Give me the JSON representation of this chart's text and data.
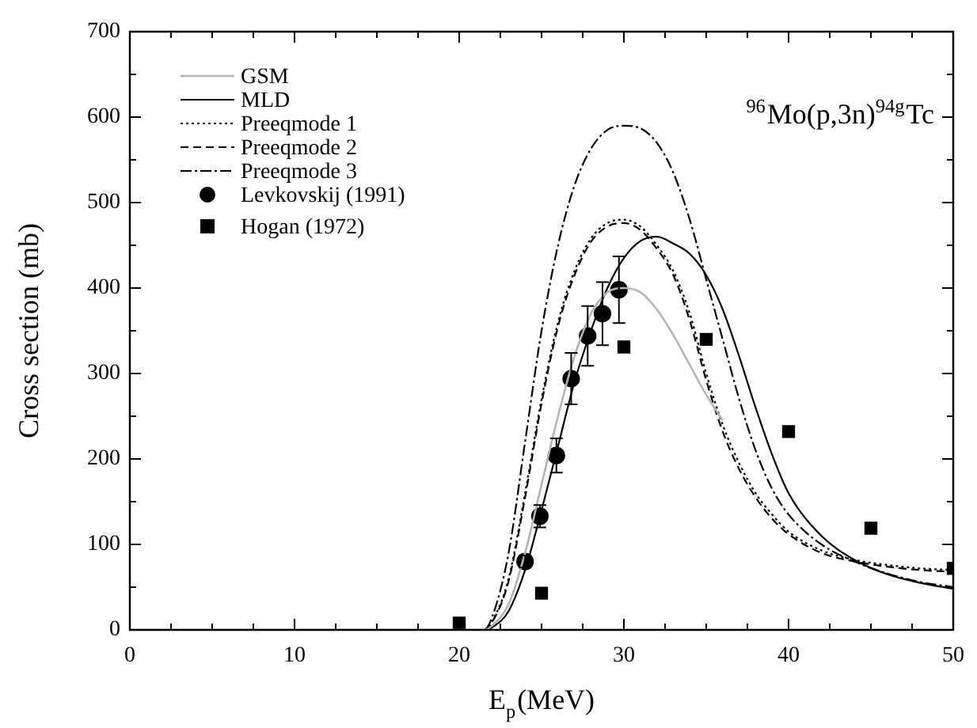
{
  "chart_data": {
    "type": "line",
    "xlabel": "E$_{p}$(MeV)",
    "ylabel": "Cross section (mb)",
    "annotations": [
      "$^{96}$Mo(p,3n)$^{94g}$Tc"
    ],
    "xlim": [
      0,
      50
    ],
    "xticks": [
      0,
      10,
      20,
      30,
      40,
      50
    ],
    "ylim": [
      0,
      700
    ],
    "yticks": [
      0,
      100,
      200,
      300,
      400,
      500,
      600,
      700
    ],
    "grid": false,
    "legend": "top left",
    "series": [
      {
        "name": "GSM",
        "color": "#b4b4b4",
        "line_style": "solid",
        "marker": "none",
        "x": [
          0,
          21.5,
          22,
          23,
          24,
          25,
          26,
          27,
          28,
          29,
          30,
          31,
          32,
          33,
          34,
          35,
          36
        ],
        "values": [
          0,
          0,
          5,
          30,
          90,
          170,
          250,
          320,
          370,
          395,
          400,
          395,
          375,
          345,
          310,
          275,
          245
        ]
      },
      {
        "name": "MLD",
        "color": "#000000",
        "line_style": "solid",
        "marker": "none",
        "x": [
          0,
          21.5,
          22,
          23,
          24,
          25,
          26,
          27,
          28,
          29,
          30,
          31,
          32,
          33,
          34,
          35,
          36,
          37,
          38,
          39,
          40,
          42,
          44,
          46,
          48,
          50
        ],
        "values": [
          0,
          0,
          3,
          22,
          70,
          140,
          215,
          290,
          350,
          400,
          435,
          455,
          460,
          452,
          440,
          415,
          375,
          320,
          260,
          205,
          160,
          110,
          82,
          65,
          55,
          48
        ]
      },
      {
        "name": "Preeqmode 1",
        "color": "#000000",
        "line_style": "dotted",
        "marker": "none",
        "x": [
          0,
          21.5,
          22,
          23,
          24,
          25,
          26,
          27,
          28,
          29,
          30,
          31,
          32,
          33,
          34,
          35,
          36,
          37,
          38,
          39,
          40,
          42,
          44,
          46,
          48,
          50
        ],
        "values": [
          0,
          0,
          10,
          60,
          160,
          270,
          360,
          420,
          458,
          476,
          480,
          472,
          450,
          420,
          370,
          300,
          240,
          195,
          160,
          135,
          115,
          93,
          82,
          76,
          72,
          70
        ]
      },
      {
        "name": "Preeqmode 2",
        "color": "#000000",
        "line_style": "dashed",
        "marker": "none",
        "x": [
          0,
          21.5,
          22,
          23,
          24,
          25,
          26,
          27,
          28,
          29,
          30,
          31,
          32,
          33,
          34,
          35,
          36,
          37,
          38,
          39,
          40,
          42,
          44,
          46,
          48,
          50
        ],
        "values": [
          0,
          0,
          9,
          57,
          155,
          265,
          355,
          415,
          454,
          472,
          476,
          468,
          446,
          415,
          362,
          292,
          232,
          188,
          155,
          130,
          112,
          90,
          80,
          74,
          70,
          68
        ]
      },
      {
        "name": "Preeqmode 3",
        "color": "#000000",
        "line_style": "dashdot",
        "marker": "none",
        "x": [
          0,
          21.5,
          22,
          23,
          24,
          25,
          26,
          27,
          28,
          29,
          30,
          31,
          32,
          33,
          34,
          35,
          36,
          37,
          38,
          39,
          40,
          42,
          44,
          46,
          48,
          50
        ],
        "values": [
          0,
          0,
          15,
          90,
          220,
          350,
          450,
          520,
          563,
          585,
          590,
          587,
          570,
          535,
          480,
          410,
          340,
          270,
          210,
          165,
          135,
          100,
          80,
          66,
          56,
          50
        ]
      },
      {
        "name": "Levkovskij (1991)",
        "type": "scatter",
        "color": "#000000",
        "marker": "circle",
        "x": [
          24.0,
          24.9,
          25.9,
          26.8,
          27.8,
          28.7,
          29.7
        ],
        "values": [
          80,
          133,
          204,
          294,
          344,
          370,
          398
        ],
        "errors": [
          7,
          13,
          20,
          30,
          35,
          37,
          39
        ]
      },
      {
        "name": "Hogan (1972)",
        "type": "scatter",
        "color": "#000000",
        "marker": "square",
        "x": [
          20,
          25,
          30,
          35,
          40,
          45,
          50
        ],
        "values": [
          8,
          43,
          331,
          340,
          232,
          119,
          72
        ]
      }
    ]
  }
}
